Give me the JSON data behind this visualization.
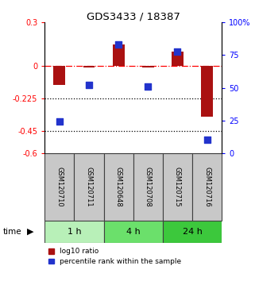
{
  "title": "GDS3433 / 18387",
  "samples": [
    "GSM120710",
    "GSM120711",
    "GSM120648",
    "GSM120708",
    "GSM120715",
    "GSM120716"
  ],
  "log10_ratio": [
    -0.13,
    -0.01,
    0.15,
    -0.01,
    0.1,
    -0.35
  ],
  "percentile_rank": [
    24,
    52,
    83,
    51,
    78,
    10
  ],
  "groups": [
    {
      "label": "1 h",
      "indices": [
        0,
        1
      ],
      "color": "#b8f0b8"
    },
    {
      "label": "4 h",
      "indices": [
        2,
        3
      ],
      "color": "#6be06b"
    },
    {
      "label": "24 h",
      "indices": [
        4,
        5
      ],
      "color": "#3cc83c"
    }
  ],
  "ylim_left": [
    -0.6,
    0.3
  ],
  "ylim_right": [
    0,
    100
  ],
  "yticks_left": [
    0.3,
    0.0,
    -0.225,
    -0.45,
    -0.6
  ],
  "yticklabels_left": [
    "0.3",
    "0",
    "-0.225",
    "-0.45",
    "-0.6"
  ],
  "yticks_right": [
    100,
    75,
    50,
    25,
    0
  ],
  "yticklabels_right": [
    "100%",
    "75",
    "50",
    "25",
    "0"
  ],
  "bar_color": "#aa1111",
  "dot_color": "#2233cc",
  "bar_width": 0.4,
  "dot_size": 40,
  "label_log10": "log10 ratio",
  "label_pct": "percentile rank within the sample",
  "time_label": "time",
  "header_bg": "#c8c8c8",
  "header_border": "#404040",
  "plot_bg": "white"
}
